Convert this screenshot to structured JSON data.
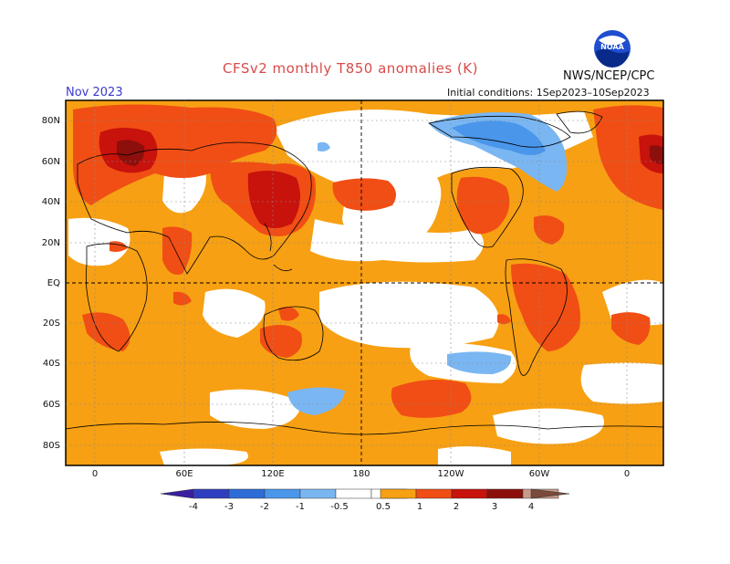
{
  "header": {
    "title": "CFSv2 monthly T850 anomalies (K)",
    "agency": "NWS/NCEP/CPC",
    "logo_text": "NOAA",
    "month": "Nov 2023",
    "initial_conditions": "Initial conditions: 1Sep2023–10Sep2023"
  },
  "map": {
    "lat_labels": [
      "80N",
      "60N",
      "40N",
      "20N",
      "EQ",
      "20S",
      "40S",
      "60S",
      "80S"
    ],
    "lon_labels": [
      "0",
      "60E",
      "120E",
      "180",
      "120W",
      "60W",
      "0"
    ]
  },
  "colorbar": {
    "levels": [
      "-4",
      "-3",
      "-2",
      "-1",
      "-0.5",
      "0.5",
      "1",
      "2",
      "3",
      "4"
    ],
    "colors": {
      "lt_m4": "#3a1fa0",
      "m4_m3": "#2f3ec0",
      "m3_m2": "#2e6cd8",
      "m2_m1": "#4a96ea",
      "m1_m05": "#7ab6f2",
      "neutral": "#ffffff",
      "p05_p1": "#f7a013",
      "p1_p2": "#f04e15",
      "p2_p3": "#c8120c",
      "p3_p4": "#8c0f0b",
      "p4_p5": "#c89a8a",
      "gt_p5": "#7a4a3a"
    }
  }
}
